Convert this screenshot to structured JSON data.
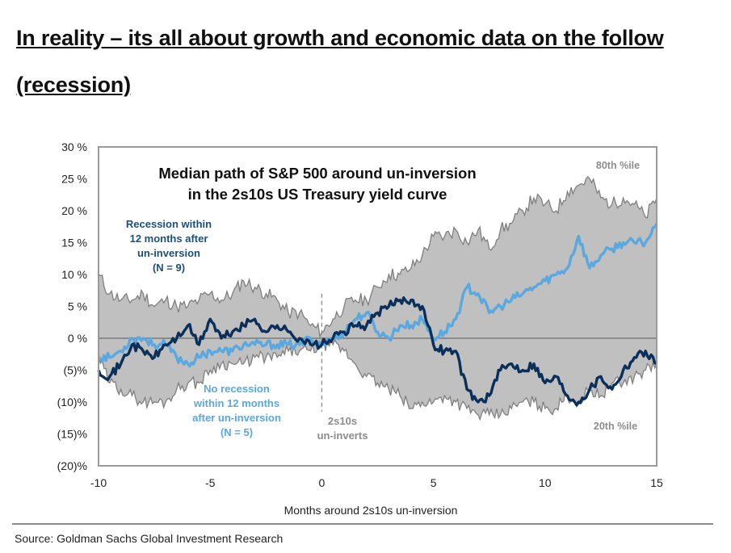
{
  "slide": {
    "title": "In reality – its all about growth and economic data on the follow (recession) ",
    "source": "Source: Goldman Sachs Global Investment Research"
  },
  "chart_data": {
    "type": "line",
    "title_line1": "Median path of S&P 500 around un-inversion",
    "title_line2": "in the 2s10s US Treasury yield curve",
    "xlabel": "Months around 2s10s un-inversion",
    "ylabel": "",
    "xlim": [
      -10,
      15
    ],
    "ylim": [
      -20,
      30
    ],
    "x_ticks": [
      -10,
      -5,
      0,
      5,
      10,
      15
    ],
    "x_tick_labels": [
      "-10",
      "-5",
      "0",
      "5",
      "10",
      "15"
    ],
    "y_ticks": [
      30,
      25,
      20,
      15,
      10,
      5,
      0,
      -5,
      -10,
      -15,
      -20
    ],
    "y_tick_labels": [
      "30 %",
      "25 %",
      "20 %",
      "15 %",
      "10 %",
      "5 %",
      "0 %",
      "(5)%",
      "(10)%",
      "(15)%",
      "(20)%"
    ],
    "grid": false,
    "zero_line": true,
    "event_marker": {
      "x": 0,
      "style": "dashed",
      "label_line1": "2s10s",
      "label_line2": "un-inverts"
    },
    "colors": {
      "band_fill": "#c0c0c0",
      "band_edge": "#7f7f7f",
      "recession": "#0b2f5b",
      "no_recession": "#5aa8e0",
      "annotation_grey": "#8c8c8c",
      "zero_line": "#6e6e6e"
    },
    "annotations": {
      "band_top_label": "80th %ile",
      "band_bottom_label": "20th %ile",
      "recession_label": [
        "Recession within",
        "12 months after",
        "un-inversion",
        "(N = 9)"
      ],
      "no_recession_label": [
        "No recession",
        "within 12 months",
        "after un-inversion",
        "(N = 5)"
      ]
    },
    "x": [
      -10,
      -9.5,
      -9,
      -8.5,
      -8,
      -7.5,
      -7,
      -6.5,
      -6,
      -5.5,
      -5,
      -4.5,
      -4,
      -3.5,
      -3,
      -2.5,
      -2,
      -1.5,
      -1,
      -0.5,
      0,
      0.5,
      1,
      1.5,
      2,
      2.5,
      3,
      3.5,
      4,
      4.5,
      5,
      5.5,
      6,
      6.5,
      7,
      7.5,
      8,
      8.5,
      9,
      9.5,
      10,
      10.5,
      11,
      11.5,
      12,
      12.5,
      13,
      13.5,
      14,
      14.5,
      15
    ],
    "series": [
      {
        "name": "80th %ile",
        "role": "band-upper",
        "values": [
          10,
          7,
          6,
          6,
          7,
          5,
          6,
          5,
          5,
          6,
          7,
          6,
          7,
          9,
          8,
          7,
          6,
          4,
          4,
          2,
          1,
          3,
          5,
          6,
          6,
          8,
          10,
          10,
          11,
          13,
          16,
          16,
          17,
          15,
          17,
          14,
          17,
          18,
          20,
          22,
          21,
          20,
          23,
          24,
          25,
          22,
          21,
          22,
          21,
          19,
          22
        ]
      },
      {
        "name": "20th %ile",
        "role": "band-lower",
        "values": [
          -3,
          -7,
          -8,
          -9,
          -10,
          -10,
          -10,
          -8,
          -7,
          -7,
          -5,
          -4,
          -4,
          -4,
          -3,
          -3,
          -3,
          -2,
          -2,
          -2,
          -1,
          -1,
          -2,
          -4,
          -6,
          -7,
          -8,
          -9,
          -11,
          -10,
          -10,
          -9,
          -10,
          -11,
          -12,
          -12,
          -12,
          -11,
          -10,
          -10,
          -11,
          -11,
          -9,
          -10,
          -8,
          -9,
          -7,
          -7,
          -6,
          -5,
          -4
        ]
      },
      {
        "name": "Recession within 12 months after un-inversion (N = 9)",
        "role": "line",
        "values": [
          -5,
          -6,
          -4,
          -1,
          -2,
          -3,
          -1,
          0,
          2,
          -1,
          3,
          0,
          1,
          2,
          3,
          1,
          2,
          1,
          0,
          -1,
          -1,
          0,
          1,
          2,
          2,
          4,
          5,
          6,
          6,
          5,
          -1,
          -2,
          -2,
          -8,
          -10,
          -9,
          -5,
          -4,
          -5,
          -4,
          -7,
          -6,
          -9,
          -10,
          -8,
          -6,
          -8,
          -5,
          -3,
          -2,
          -4
        ]
      },
      {
        "name": "No recession within 12 months after un-inversion (N = 5)",
        "role": "line",
        "values": [
          -3,
          -3,
          -2,
          0,
          0,
          -1,
          -1,
          -3,
          -4,
          -3,
          -2,
          -2,
          -2,
          -1,
          -1,
          -1,
          -1,
          -1,
          -1,
          0,
          -1,
          0,
          1,
          3,
          4,
          1,
          0,
          2,
          2,
          3,
          0,
          1,
          3,
          8,
          7,
          4,
          5,
          6,
          7,
          8,
          9,
          10,
          11,
          16,
          11,
          13,
          14,
          15,
          15,
          15,
          18
        ]
      }
    ]
  }
}
